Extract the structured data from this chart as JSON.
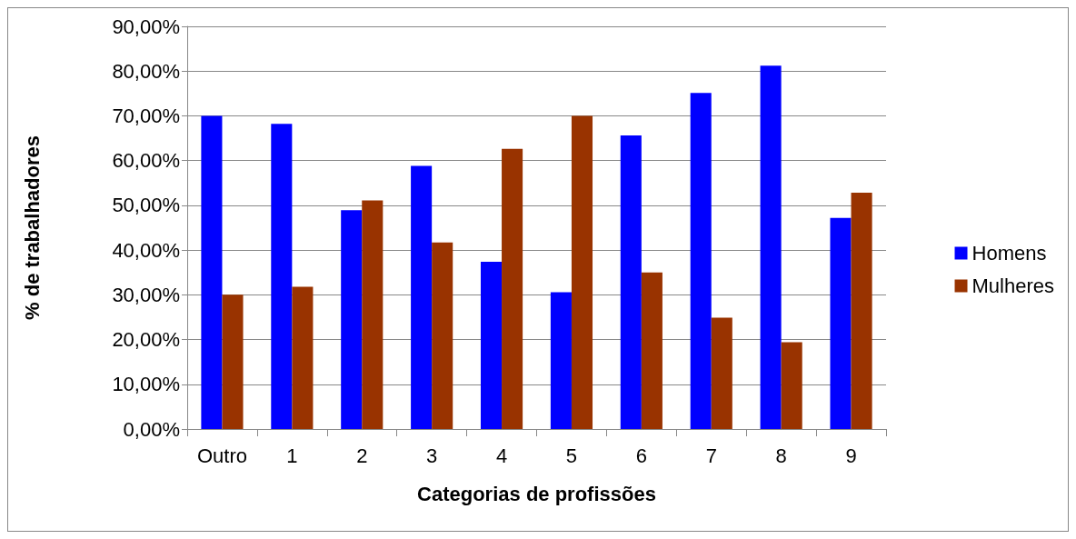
{
  "chart_data": {
    "type": "bar",
    "xlabel": "Categorias de profissões",
    "ylabel": "% de trabalhadores",
    "categories": [
      "Outro",
      "1",
      "2",
      "3",
      "4",
      "5",
      "6",
      "7",
      "8",
      "9"
    ],
    "series": [
      {
        "name": "Homens",
        "color": "#0000ff",
        "values": [
          70,
          68.2,
          48.9,
          58.8,
          37.4,
          30.6,
          65.6,
          75.1,
          81.2,
          47.2
        ]
      },
      {
        "name": "Mulheres",
        "color": "#993300",
        "values": [
          30,
          31.8,
          51.1,
          41.7,
          62.6,
          70,
          35,
          24.9,
          19.4,
          52.8
        ]
      }
    ],
    "ylim": [
      0,
      90
    ],
    "yticks": [
      {
        "value": 0,
        "label": "0,00%"
      },
      {
        "value": 10,
        "label": "10,00%"
      },
      {
        "value": 20,
        "label": "20,00%"
      },
      {
        "value": 30,
        "label": "30,00%"
      },
      {
        "value": 40,
        "label": "40,00%"
      },
      {
        "value": 50,
        "label": "50,00%"
      },
      {
        "value": 60,
        "label": "60,00%"
      },
      {
        "value": 70,
        "label": "70,00%"
      },
      {
        "value": 80,
        "label": "80,00%"
      },
      {
        "value": 90,
        "label": "90,00%"
      }
    ],
    "grid": "y",
    "legend": "right"
  }
}
